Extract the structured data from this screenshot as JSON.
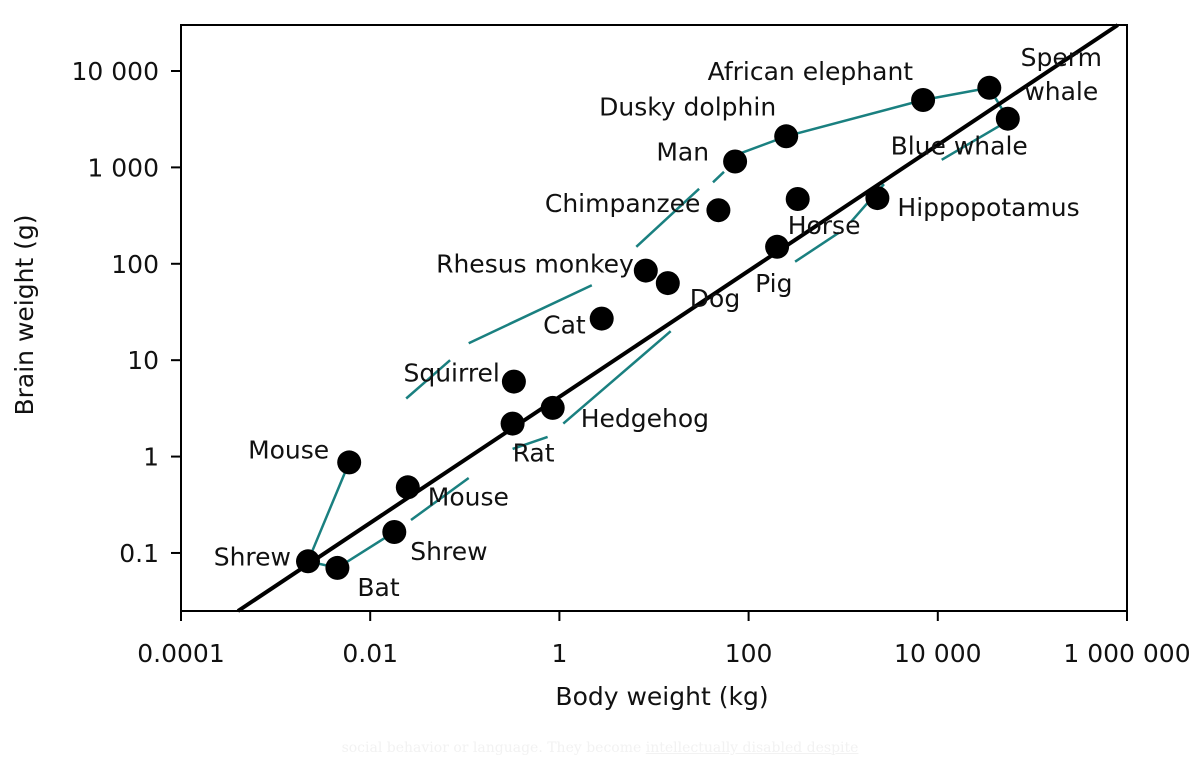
{
  "chart_data": {
    "type": "scatter",
    "title": "",
    "xlabel": "Body weight (kg)",
    "ylabel": "Brain weight (g)",
    "x_scale": "log",
    "y_scale": "log",
    "xlim": [
      0.0001,
      1000000
    ],
    "ylim": [
      0.025,
      30000
    ],
    "x_ticks": [
      {
        "value": 0.0001,
        "label": "0.0001"
      },
      {
        "value": 0.01,
        "label": "0.01"
      },
      {
        "value": 1,
        "label": "1"
      },
      {
        "value": 100,
        "label": "100"
      },
      {
        "value": 10000,
        "label": "10 000"
      },
      {
        "value": 1000000,
        "label": "1 000 000"
      }
    ],
    "y_ticks": [
      {
        "value": 0.1,
        "label": "0.1"
      },
      {
        "value": 1,
        "label": "1"
      },
      {
        "value": 10,
        "label": "10"
      },
      {
        "value": 100,
        "label": "100"
      },
      {
        "value": 1000,
        "label": "1 000"
      },
      {
        "value": 10000,
        "label": "10 000"
      }
    ],
    "grid": false,
    "trend_line": {
      "from": [
        0.0004,
        0.025
      ],
      "to": [
        800000,
        30000
      ],
      "color": "#000000"
    },
    "points": [
      {
        "id": "shrew-a",
        "label": "Shrew",
        "x": 0.0022,
        "y": 0.082
      },
      {
        "id": "bat",
        "label": "Bat",
        "x": 0.0045,
        "y": 0.07
      },
      {
        "id": "mouse-a",
        "label": "Mouse",
        "x": 0.006,
        "y": 0.87
      },
      {
        "id": "shrew-b",
        "label": "Shrew",
        "x": 0.018,
        "y": 0.165
      },
      {
        "id": "mouse-b",
        "label": "Mouse",
        "x": 0.025,
        "y": 0.48
      },
      {
        "id": "rat",
        "label": "Rat",
        "x": 0.32,
        "y": 2.2
      },
      {
        "id": "squirrel",
        "label": "Squirrel",
        "x": 0.33,
        "y": 6.0
      },
      {
        "id": "hedgehog",
        "label": "Hedgehog",
        "x": 0.85,
        "y": 3.2
      },
      {
        "id": "cat",
        "label": "Cat",
        "x": 2.8,
        "y": 27
      },
      {
        "id": "rhesus-monkey",
        "label": "Rhesus monkey",
        "x": 8.2,
        "y": 85
      },
      {
        "id": "dog",
        "label": "Dog",
        "x": 14,
        "y": 63
      },
      {
        "id": "chimpanzee",
        "label": "Chimpanzee",
        "x": 48,
        "y": 360
      },
      {
        "id": "man",
        "label": "Man",
        "x": 72,
        "y": 1150
      },
      {
        "id": "pig",
        "label": "Pig",
        "x": 200,
        "y": 150
      },
      {
        "id": "dusky-dolphin",
        "label": "Dusky dolphin",
        "x": 250,
        "y": 2100
      },
      {
        "id": "horse",
        "label": "Horse",
        "x": 330,
        "y": 470
      },
      {
        "id": "hippopotamus",
        "label": "Hippopotamus",
        "x": 2300,
        "y": 480
      },
      {
        "id": "african-elephant",
        "label": "African elephant",
        "x": 7000,
        "y": 5000
      },
      {
        "id": "sperm-whale",
        "label": "Sperm\nwhale",
        "x": 35000,
        "y": 6700
      },
      {
        "id": "blue-whale",
        "label": "Blue whale",
        "x": 55000,
        "y": 3200
      }
    ],
    "connector_color": "#1a8080",
    "connectors": [
      {
        "id": "upper-hull",
        "points": [
          [
            0.0022,
            0.082
          ],
          [
            0.006,
            0.87
          ],
          [
            0.0075,
            1.0
          ]
        ]
      },
      {
        "id": "upper-hull-2",
        "points": [
          [
            0.024,
            4.0
          ],
          [
            0.07,
            10
          ]
        ]
      },
      {
        "id": "upper-hull-3",
        "points": [
          [
            0.11,
            15
          ],
          [
            2.2,
            60
          ]
        ]
      },
      {
        "id": "upper-hull-4",
        "points": [
          [
            6.5,
            150
          ],
          [
            30,
            600
          ]
        ]
      },
      {
        "id": "upper-hull-5",
        "points": [
          [
            42,
            700
          ],
          [
            55,
            900
          ]
        ]
      },
      {
        "id": "upper-hull-6",
        "points": [
          [
            82,
            1400
          ],
          [
            250,
            2100
          ],
          [
            7000,
            5000
          ],
          [
            35000,
            6700
          ],
          [
            55000,
            3200
          ]
        ]
      },
      {
        "id": "lower-hull-1",
        "points": [
          [
            0.0022,
            0.082
          ],
          [
            0.0045,
            0.07
          ],
          [
            0.018,
            0.165
          ]
        ]
      },
      {
        "id": "lower-hull-2",
        "points": [
          [
            0.027,
            0.22
          ],
          [
            0.11,
            0.6
          ]
        ]
      },
      {
        "id": "lower-hull-3",
        "points": [
          [
            0.32,
            1.2
          ],
          [
            0.75,
            1.6
          ]
        ]
      },
      {
        "id": "lower-hull-4",
        "points": [
          [
            1.1,
            2.2
          ],
          [
            15,
            20
          ]
        ]
      },
      {
        "id": "lower-hull-5",
        "points": [
          [
            310,
            105
          ],
          [
            900,
            210
          ]
        ]
      },
      {
        "id": "lower-hull-6",
        "points": [
          [
            1200,
            270
          ],
          [
            2700,
            670
          ]
        ]
      },
      {
        "id": "lower-hull-7",
        "points": [
          [
            11000,
            1200
          ],
          [
            45000,
            2700
          ]
        ]
      }
    ]
  },
  "footer": {
    "text_before": "social behavior or language. They become ",
    "link_text": "intellectually disabled despite"
  }
}
